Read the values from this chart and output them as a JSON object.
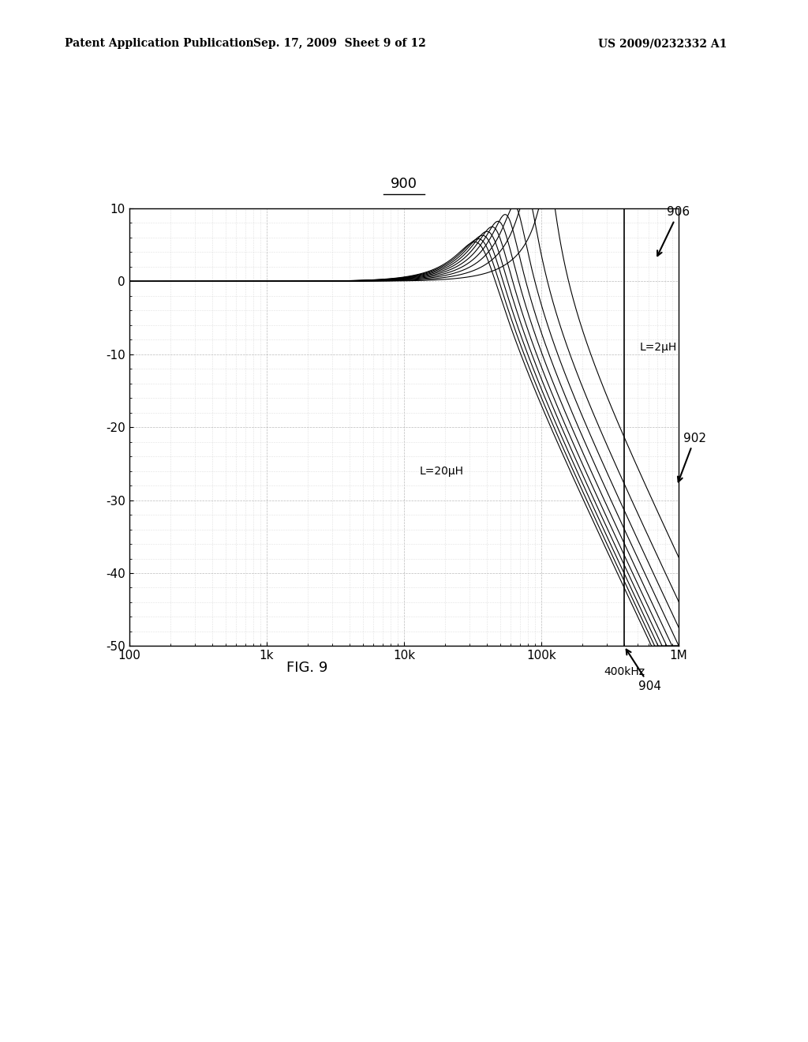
{
  "title": "900",
  "fig_label": "FIG. 9",
  "header_left": "Patent Application Publication",
  "header_center": "Sep. 17, 2009  Sheet 9 of 12",
  "header_right": "US 2009/0232332 A1",
  "xmin": 100,
  "xmax": 1000000,
  "ymin": -50,
  "ymax": 10,
  "xlabel_ticks": [
    "100",
    "1k",
    "10k",
    "100k",
    "1M"
  ],
  "xlabel_vals": [
    100,
    1000,
    10000,
    100000,
    1000000
  ],
  "yticks": [
    10,
    0,
    -10,
    -20,
    -30,
    -40,
    -50
  ],
  "L_values_uH": [
    2,
    4,
    6,
    8,
    10,
    12,
    14,
    16,
    18,
    20
  ],
  "R_load": 8,
  "C_filter": 1e-06,
  "label_L2": "L=2μH",
  "label_L20": "L=20μH",
  "label_906": "906",
  "label_902": "902",
  "label_904": "904",
  "annotation_400k": "400kHz",
  "freq_400k": 400000,
  "background_color": "#ffffff",
  "line_color": "#000000",
  "grid_major_color": "#aaaaaa",
  "grid_minor_color": "#cccccc"
}
